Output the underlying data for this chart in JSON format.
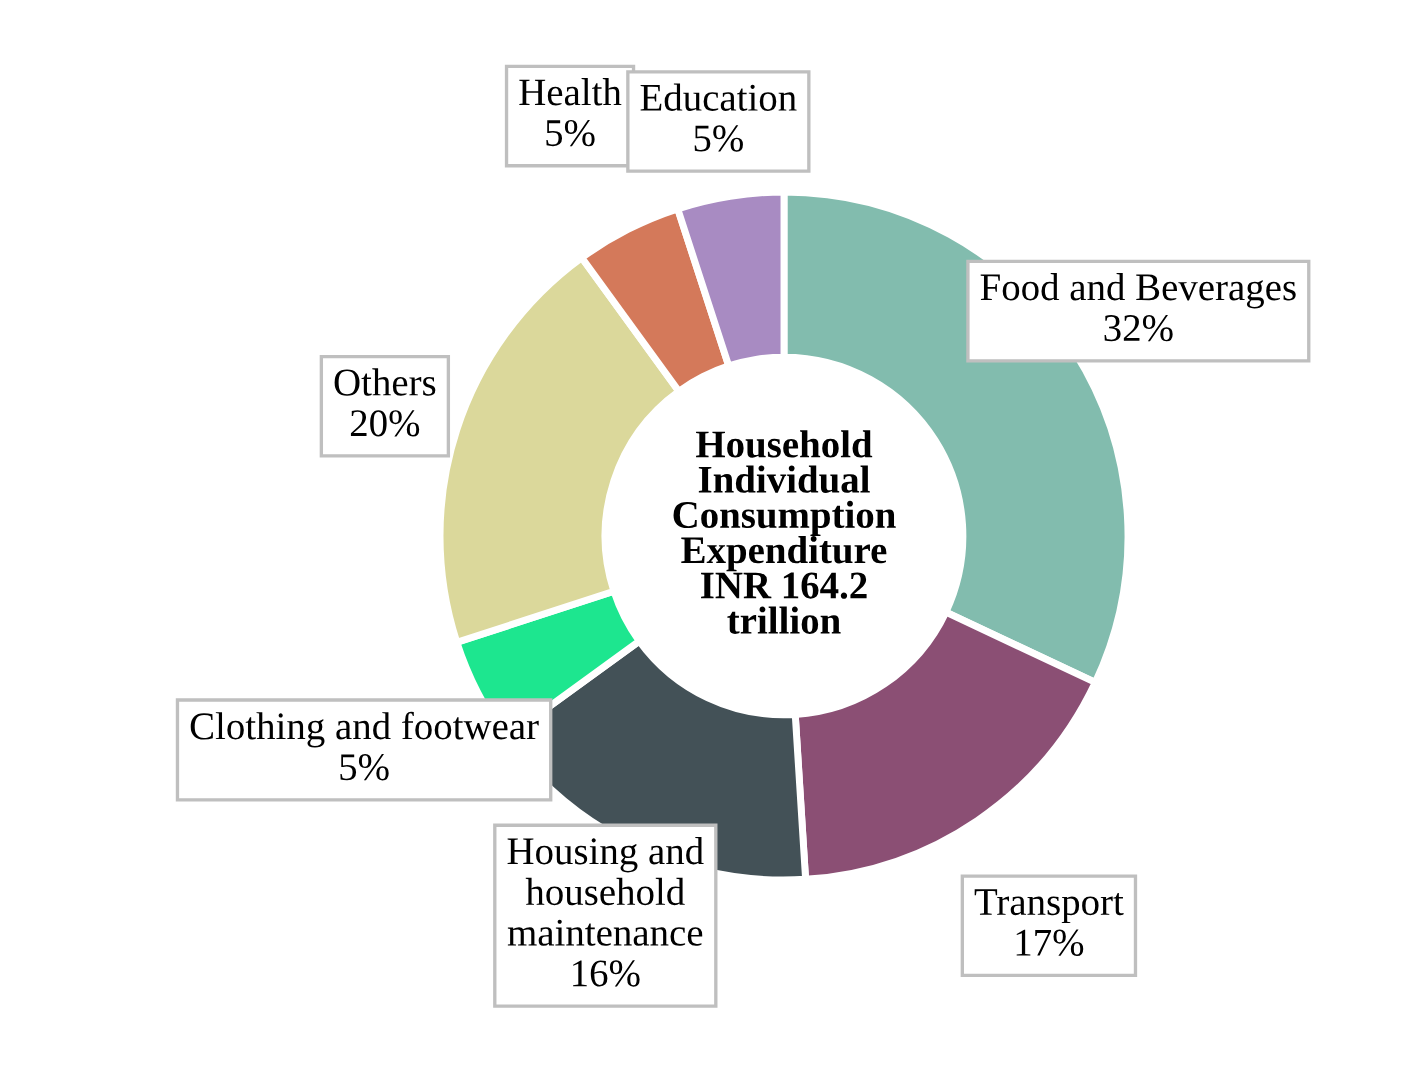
{
  "chart_data": {
    "type": "donut",
    "title": "Household\nIndividual\nConsumption\nExpenditure\nINR 164.2\ntrillion",
    "categories": [
      "Food and Beverages",
      "Transport",
      "Housing and\nhousehold\nmaintenance",
      "Clothing and footwear",
      "Others",
      "Health",
      "Education"
    ],
    "values": [
      32,
      17,
      16,
      5,
      20,
      5,
      5
    ],
    "colors": [
      "#82bcae",
      "#8b4f74",
      "#435157",
      "#1de68f",
      "#dbd89b",
      "#d4795a",
      "#a88bc2"
    ],
    "value_labels": [
      "32%",
      "17%",
      "16%",
      "5%",
      "20%",
      "5%",
      "5%"
    ],
    "legend": false
  }
}
